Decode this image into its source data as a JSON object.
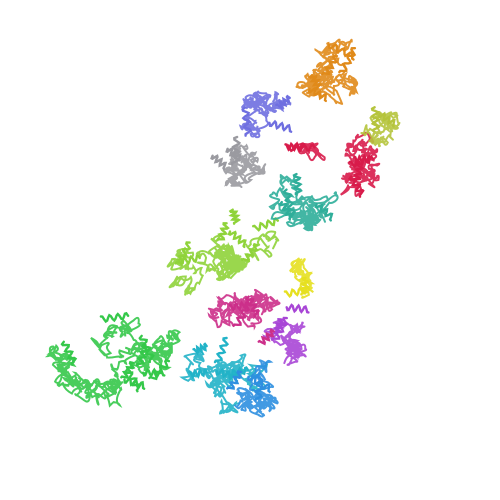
{
  "image": {
    "background": "#ffffff",
    "subject": "protein-ribbon-rendering",
    "chains": [
      {
        "name": "orange-chain",
        "color": "#e08a1a"
      },
      {
        "name": "blue-chain",
        "color": "#6f6fe0"
      },
      {
        "name": "olive-chain",
        "color": "#b5c43c"
      },
      {
        "name": "crimson-chain",
        "color": "#d81b4a"
      },
      {
        "name": "gray-chain",
        "color": "#9a9aa0"
      },
      {
        "name": "teal-chain",
        "color": "#2fae9a"
      },
      {
        "name": "lime-chain",
        "color": "#8fd33a"
      },
      {
        "name": "yellow-chain",
        "color": "#e6e020"
      },
      {
        "name": "magenta-chain",
        "color": "#cc2f8a"
      },
      {
        "name": "violet-chain",
        "color": "#a846d6"
      },
      {
        "name": "green-chain",
        "color": "#35c84a"
      },
      {
        "name": "cyan-chain",
        "color": "#22b3c8"
      },
      {
        "name": "skyblue-chain",
        "color": "#2e8fe0"
      }
    ]
  }
}
